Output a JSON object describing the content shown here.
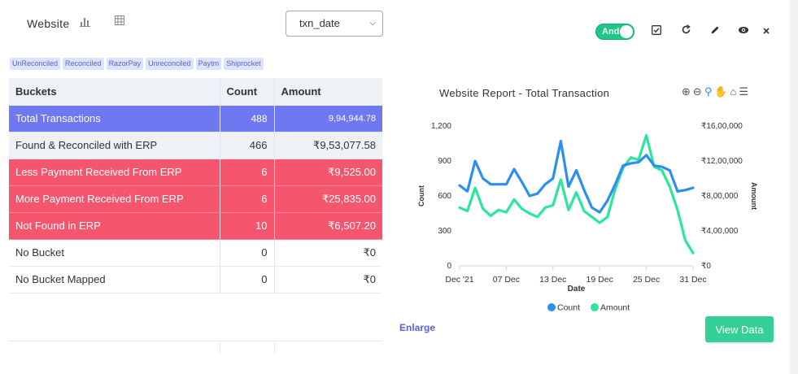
{
  "header": {
    "title": "Website",
    "select_value": "txn_date",
    "toggle_label": "And",
    "icons": [
      "bar-chart-icon",
      "table-icon",
      "checkbox-icon",
      "refresh-icon",
      "edit-icon",
      "eye-icon",
      "close-icon"
    ]
  },
  "chips": [
    "UnReconciled",
    "Reconciled",
    "RazorPay",
    "Unreconciled",
    "Paytm",
    "Shiprocket"
  ],
  "table": {
    "headers": [
      "Buckets",
      "Count",
      "Amount"
    ],
    "rows": [
      {
        "bucket": "Total Transactions",
        "count": "488",
        "amount": "9,94,944.78"
      },
      {
        "bucket": "Found & Reconciled with ERP",
        "count": "466",
        "amount": "₹9,53,077.58"
      },
      {
        "bucket": "Less Payment Received From ERP",
        "count": "6",
        "amount": "₹9,525.00"
      },
      {
        "bucket": "More Payment Received From ERP",
        "count": "6",
        "amount": "₹25,835.00"
      },
      {
        "bucket": "Not Found in ERP",
        "count": "10",
        "amount": "₹6,507.20"
      },
      {
        "bucket": "No Bucket",
        "count": "0",
        "amount": "₹0"
      },
      {
        "bucket": "No Bucket Mapped",
        "count": "0",
        "amount": "₹0"
      }
    ]
  },
  "chart_data": {
    "type": "line",
    "title": "Website Report - Total Transaction",
    "xlabel": "Date",
    "ylabel": "Count",
    "y2label": "Amount",
    "x_ticks": [
      "Dec '21",
      "07 Dec",
      "13 Dec",
      "19 Dec",
      "25 Dec",
      "31 Dec"
    ],
    "y_ticks": [
      "0",
      "300",
      "600",
      "900",
      "1,200"
    ],
    "y2_ticks": [
      "₹0",
      "₹4,00,000",
      "₹8,00,000",
      "₹12,00,000",
      "₹16,00,000"
    ],
    "ylim": [
      0,
      1200
    ],
    "y2lim": [
      0,
      1600000
    ],
    "series": [
      {
        "name": "Count",
        "color": "#2b8ff0",
        "axis": "left",
        "values": [
          690,
          640,
          900,
          750,
          700,
          700,
          700,
          830,
          720,
          600,
          620,
          700,
          750,
          1070,
          680,
          820,
          650,
          500,
          460,
          560,
          700,
          860,
          880,
          890,
          950,
          860,
          850,
          820,
          640,
          650,
          670
        ]
      },
      {
        "name": "Amount",
        "color": "#2ee59d",
        "axis": "left",
        "values": [
          500,
          470,
          670,
          490,
          430,
          480,
          460,
          570,
          490,
          450,
          420,
          500,
          520,
          740,
          480,
          630,
          470,
          420,
          370,
          420,
          660,
          840,
          930,
          910,
          1120,
          850,
          820,
          680,
          480,
          220,
          110
        ]
      }
    ],
    "legend": "bottom",
    "toolbar_icons": [
      "zoom-in-icon",
      "zoom-out-icon",
      "magnify-icon",
      "pan-icon",
      "home-icon",
      "menu-icon"
    ]
  },
  "footer": {
    "enlarge_label": "Enlarge",
    "view_data_label": "View Data"
  }
}
